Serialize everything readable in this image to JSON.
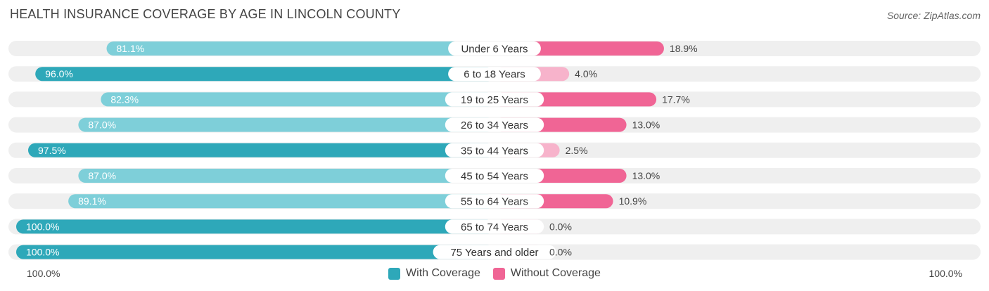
{
  "header": {
    "title": "HEALTH INSURANCE COVERAGE BY AGE IN LINCOLN COUNTY",
    "source": "Source: ZipAtlas.com"
  },
  "axis": {
    "left_label": "100.0%",
    "right_label": "100.0%"
  },
  "legend": {
    "with_label": "With Coverage",
    "without_label": "Without Coverage"
  },
  "colors": {
    "with_dark": "#2ea8b9",
    "with_light": "#7ecfd9",
    "without_dark": "#f06595",
    "without_light": "#f7b3cb",
    "track": "#efefef"
  },
  "chart_data": {
    "type": "bar",
    "orientation": "horizontal-diverging",
    "title": "HEALTH INSURANCE COVERAGE BY AGE IN LINCOLN COUNTY",
    "categories": [
      "Under 6 Years",
      "6 to 18 Years",
      "19 to 25 Years",
      "26 to 34 Years",
      "35 to 44 Years",
      "45 to 54 Years",
      "55 to 64 Years",
      "65 to 74 Years",
      "75 Years and older"
    ],
    "series": [
      {
        "name": "With Coverage",
        "values": [
          81.1,
          96.0,
          82.3,
          87.0,
          97.5,
          87.0,
          89.1,
          100.0,
          100.0
        ],
        "labels": [
          "81.1%",
          "96.0%",
          "82.3%",
          "87.0%",
          "97.5%",
          "87.0%",
          "89.1%",
          "100.0%",
          "100.0%"
        ]
      },
      {
        "name": "Without Coverage",
        "values": [
          18.9,
          4.0,
          17.7,
          13.0,
          2.5,
          13.0,
          10.9,
          0.0,
          0.0
        ],
        "labels": [
          "18.9%",
          "4.0%",
          "17.7%",
          "13.0%",
          "2.5%",
          "13.0%",
          "10.9%",
          "0.0%",
          "0.0%"
        ]
      }
    ],
    "xlim": [
      0,
      100
    ],
    "xlabel_left": "100.0%",
    "xlabel_right": "100.0%"
  }
}
